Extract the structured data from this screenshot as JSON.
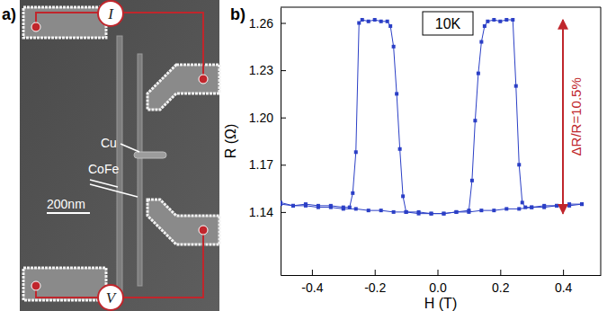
{
  "panel_a": {
    "panel_label": "a)",
    "current_label": "I",
    "voltage_label": "V",
    "cu_label": "Cu",
    "cofe_label": "CoFe",
    "scale_label": "200nm"
  },
  "chart_data": {
    "type": "line",
    "title": "b)",
    "x_label": "H (T)",
    "y_label": "R (Ω)",
    "annotations": [
      "10K",
      "ΔR/R=10.5%"
    ],
    "xlim": [
      -0.5,
      0.52
    ],
    "ylim": [
      1.1,
      1.27
    ],
    "xticks": [
      -0.4,
      -0.2,
      {
        "value": 0,
        "label": "0.0"
      },
      0.2,
      0.4
    ],
    "yticks": [
      1.14,
      1.17,
      {
        "value": 1.2,
        "label": "1.20"
      },
      1.23,
      1.26
    ],
    "grid": false,
    "tick_labels": true,
    "series": [
      {
        "color": "#2b3fc6",
        "marker": "square",
        "line_style": "solid",
        "x": [
          0.46,
          0.42,
          0.38,
          0.34,
          0.3,
          0.26,
          0.22,
          0.18,
          0.14,
          0.1,
          0.06,
          0.02,
          -0.02,
          -0.06,
          -0.1,
          -0.11,
          -0.12,
          -0.13,
          -0.14,
          -0.15,
          -0.16,
          -0.18,
          -0.2,
          -0.22,
          -0.24,
          -0.25,
          -0.26,
          -0.27,
          -0.28,
          -0.3,
          -0.34,
          -0.38,
          -0.42,
          -0.46,
          -0.5
        ],
        "values": [
          1.145,
          1.144,
          1.144,
          1.143,
          1.143,
          1.142,
          1.142,
          1.141,
          1.141,
          1.14,
          1.14,
          1.139,
          1.139,
          1.14,
          1.14,
          1.15,
          1.18,
          1.215,
          1.245,
          1.258,
          1.261,
          1.261,
          1.262,
          1.261,
          1.262,
          1.26,
          1.178,
          1.152,
          1.143,
          1.143,
          1.144,
          1.144,
          1.145,
          1.144,
          1.146
        ]
      },
      {
        "color": "#2b3fc6",
        "marker": "square",
        "line_style": "solid",
        "x": [
          -0.5,
          -0.46,
          -0.42,
          -0.38,
          -0.34,
          -0.3,
          -0.26,
          -0.22,
          -0.18,
          -0.14,
          -0.1,
          -0.06,
          -0.02,
          0.02,
          0.06,
          0.1,
          0.11,
          0.12,
          0.13,
          0.14,
          0.15,
          0.16,
          0.18,
          0.2,
          0.22,
          0.24,
          0.25,
          0.26,
          0.27,
          0.28,
          0.3,
          0.34,
          0.38,
          0.42,
          0.46
        ],
        "values": [
          1.145,
          1.144,
          1.144,
          1.143,
          1.143,
          1.142,
          1.142,
          1.141,
          1.141,
          1.14,
          1.14,
          1.139,
          1.139,
          1.139,
          1.14,
          1.141,
          1.16,
          1.198,
          1.228,
          1.248,
          1.258,
          1.261,
          1.262,
          1.261,
          1.262,
          1.262,
          1.22,
          1.17,
          1.146,
          1.143,
          1.143,
          1.144,
          1.144,
          1.145,
          1.145
        ]
      }
    ]
  }
}
